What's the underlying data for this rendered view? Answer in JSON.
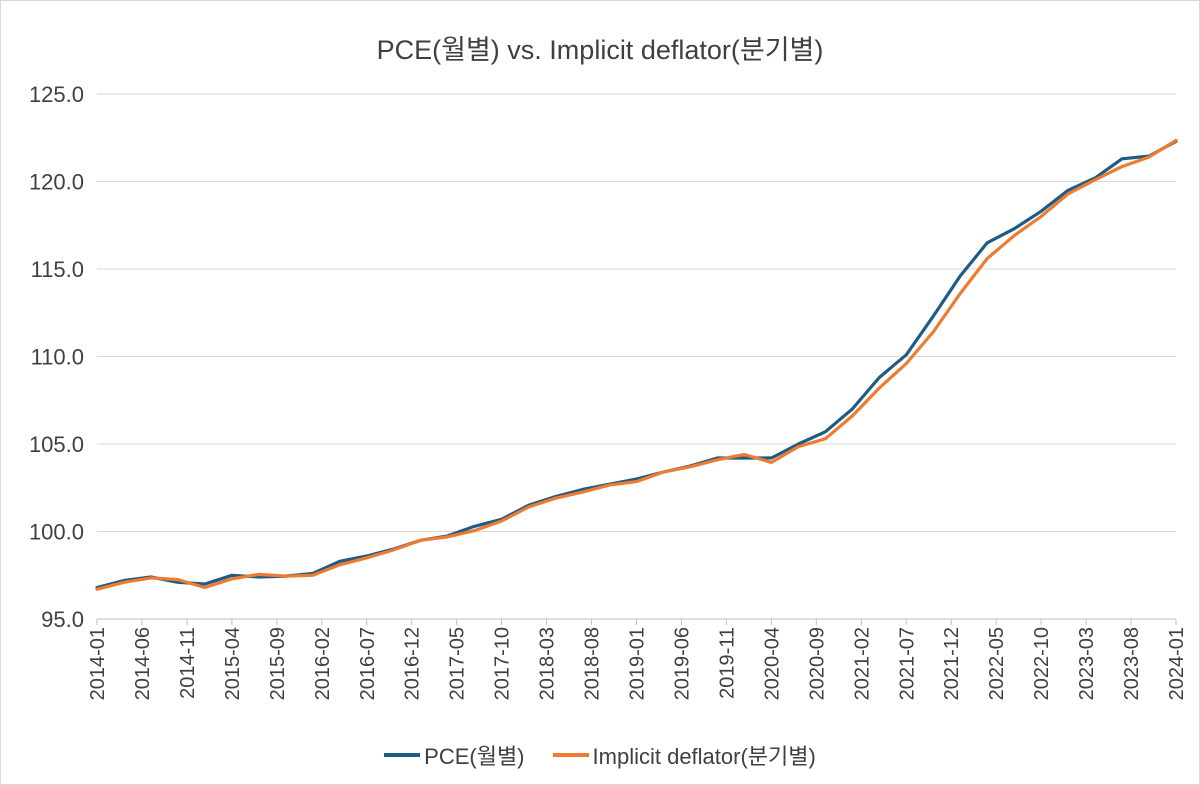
{
  "chart_data": {
    "type": "line",
    "title": "PCE(월별) vs. Implicit deflator(분기별)",
    "xlabel": "",
    "ylabel": "",
    "ylim": [
      95,
      125
    ],
    "yticks": [
      "95.0",
      "100.0",
      "105.0",
      "110.0",
      "115.0",
      "120.0",
      "125.0"
    ],
    "xticks": [
      "2014-01",
      "2014-06",
      "2014-11",
      "2015-04",
      "2015-09",
      "2016-02",
      "2016-07",
      "2016-12",
      "2017-05",
      "2017-10",
      "2018-03",
      "2018-08",
      "2019-01",
      "2019-06",
      "2019-11",
      "2020-04",
      "2020-09",
      "2021-02",
      "2021-07",
      "2021-12",
      "2022-05",
      "2022-10",
      "2023-03",
      "2023-08",
      "2024-01"
    ],
    "grid": true,
    "legend_position": "bottom",
    "series": [
      {
        "name": "PCE(월별)",
        "color": "#1f5c85",
        "x": [
          "2014-01",
          "2014-04",
          "2014-07",
          "2014-10",
          "2015-01",
          "2015-04",
          "2015-07",
          "2015-10",
          "2016-01",
          "2016-04",
          "2016-07",
          "2016-10",
          "2017-01",
          "2017-04",
          "2017-07",
          "2017-10",
          "2018-01",
          "2018-04",
          "2018-07",
          "2018-10",
          "2019-01",
          "2019-04",
          "2019-07",
          "2019-10",
          "2020-01",
          "2020-04",
          "2020-07",
          "2020-10",
          "2021-01",
          "2021-04",
          "2021-07",
          "2021-10",
          "2022-01",
          "2022-04",
          "2022-07",
          "2022-10",
          "2023-01",
          "2023-04",
          "2023-07",
          "2023-10",
          "2024-01"
        ],
        "values": [
          96.8,
          97.2,
          97.4,
          97.1,
          97.0,
          97.5,
          97.4,
          97.45,
          97.6,
          98.3,
          98.6,
          99.0,
          99.5,
          99.75,
          100.3,
          100.7,
          101.5,
          102.0,
          102.4,
          102.7,
          103.0,
          103.4,
          103.75,
          104.2,
          104.2,
          104.2,
          105.0,
          105.7,
          107.0,
          108.8,
          110.1,
          112.3,
          114.6,
          116.5,
          117.3,
          118.3,
          119.5,
          120.2,
          121.3,
          121.45,
          122.3
        ]
      },
      {
        "name": "Implicit deflator(분기별)",
        "color": "#ee7b30",
        "x": [
          "2014-01",
          "2014-04",
          "2014-07",
          "2014-10",
          "2015-01",
          "2015-04",
          "2015-07",
          "2015-10",
          "2016-01",
          "2016-04",
          "2016-07",
          "2016-10",
          "2017-01",
          "2017-04",
          "2017-07",
          "2017-10",
          "2018-01",
          "2018-04",
          "2018-07",
          "2018-10",
          "2019-01",
          "2019-04",
          "2019-07",
          "2019-10",
          "2020-01",
          "2020-04",
          "2020-07",
          "2020-10",
          "2021-01",
          "2021-04",
          "2021-07",
          "2021-10",
          "2022-01",
          "2022-04",
          "2022-07",
          "2022-10",
          "2023-01",
          "2023-04",
          "2023-07",
          "2023-10",
          "2024-01"
        ],
        "values": [
          96.7,
          97.1,
          97.35,
          97.25,
          96.8,
          97.3,
          97.55,
          97.45,
          97.5,
          98.1,
          98.5,
          98.95,
          99.5,
          99.7,
          100.05,
          100.6,
          101.4,
          101.9,
          102.25,
          102.65,
          102.85,
          103.4,
          103.7,
          104.1,
          104.4,
          103.95,
          104.85,
          105.3,
          106.6,
          108.2,
          109.6,
          111.4,
          113.6,
          115.6,
          116.9,
          118.0,
          119.3,
          120.1,
          120.85,
          121.4,
          122.35
        ]
      }
    ]
  }
}
